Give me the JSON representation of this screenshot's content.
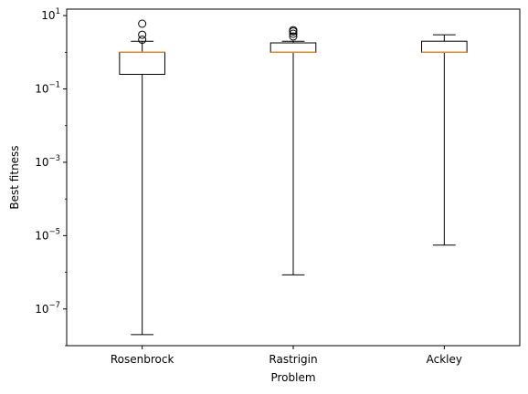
{
  "chart_data": {
    "type": "box",
    "title": "",
    "xlabel": "Problem",
    "ylabel": "Best fitness",
    "yscale": "log",
    "ylim": [
      1e-08,
      15
    ],
    "yticks": [
      {
        "value": 10,
        "base": "10",
        "exp": "1"
      },
      {
        "value": 0.1,
        "base": "10",
        "exp": "−1"
      },
      {
        "value": 0.001,
        "base": "10",
        "exp": "−3"
      },
      {
        "value": 1e-05,
        "base": "10",
        "exp": "−5"
      },
      {
        "value": 1e-07,
        "base": "10",
        "exp": "−7"
      }
    ],
    "grid": false,
    "categories": [
      "Rosenbrock",
      "Rastrigin",
      "Ackley"
    ],
    "boxes": [
      {
        "name": "Rosenbrock",
        "whisker_low": 2e-08,
        "q1": 0.25,
        "median": 1.0,
        "q3": 1.0,
        "whisker_high": 2.0,
        "fliers": [
          2.2,
          3.0,
          6.0
        ]
      },
      {
        "name": "Rastrigin",
        "whisker_low": 8.5e-07,
        "q1": 1.0,
        "median": 1.0,
        "q3": 1.8,
        "whisker_high": 2.0,
        "fliers": [
          2.7,
          3.2,
          3.7,
          4.0
        ]
      },
      {
        "name": "Ackley",
        "whisker_low": 5.5e-06,
        "q1": 1.0,
        "median": 1.0,
        "q3": 2.0,
        "whisker_high": 3.0,
        "fliers": []
      }
    ],
    "colors": {
      "box": "#000000",
      "median": "#ff7f0e",
      "flier": "#000000"
    }
  }
}
